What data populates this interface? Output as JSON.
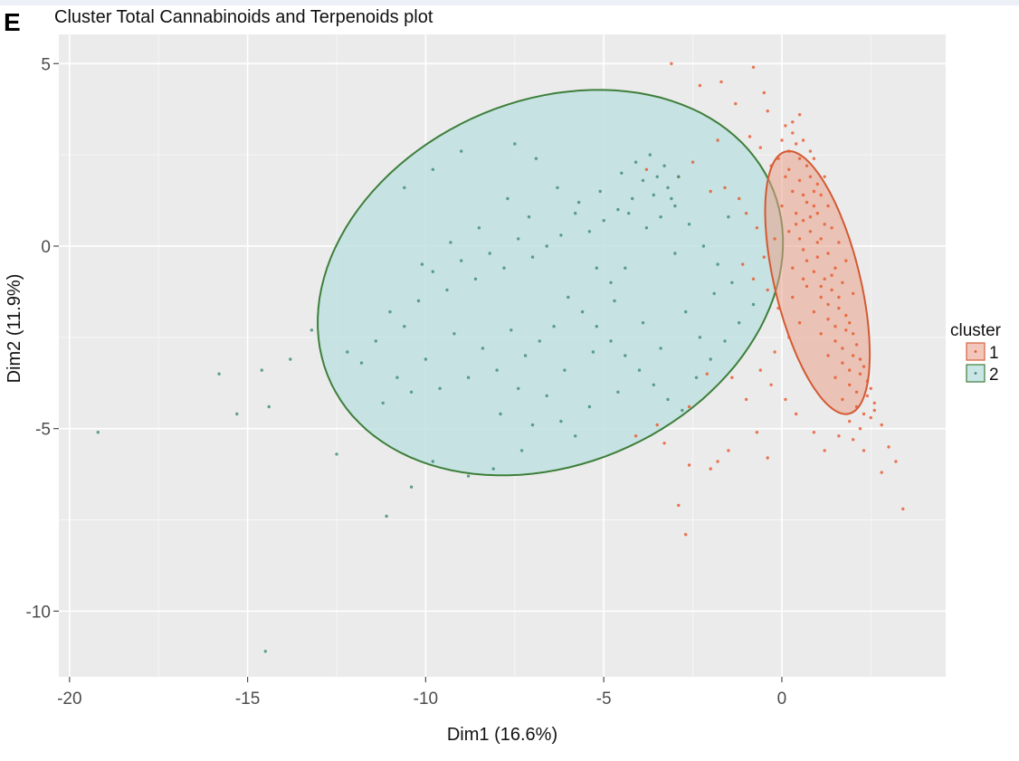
{
  "panel_label": "E",
  "chart_data": {
    "type": "scatter",
    "title": "Cluster Total Cannabinoids and Terpenoids plot",
    "xlabel": "Dim1 (16.6%)",
    "ylabel": "Dim2 (11.9%)",
    "xlim": [
      -20.3,
      4.6
    ],
    "ylim": [
      -11.8,
      5.8
    ],
    "x_ticks": [
      -20,
      -15,
      -10,
      -5,
      0
    ],
    "y_ticks": [
      5,
      0,
      -5,
      -10
    ],
    "x_tick_labels": [
      "-20",
      "-15",
      "-10",
      "-5",
      "0"
    ],
    "y_tick_labels": [
      "5",
      "0",
      "-5",
      "-10"
    ],
    "grid": true,
    "legend": {
      "title": "cluster",
      "position": "right",
      "entries": [
        {
          "label": "1",
          "color": "#e8572a",
          "fill": "#f2c6ba",
          "border": "#d96040"
        },
        {
          "label": "2",
          "color": "#3c8c73",
          "fill": "#c9e5e6",
          "border": "#3d7f3a"
        }
      ]
    },
    "series": [
      {
        "name": "1",
        "color": "#e8572a",
        "ellipse": {
          "cx": 1.0,
          "cy": -1.0,
          "rx": 3.7,
          "ry": 1.2,
          "angle_deg": -76,
          "fill": "#e9a08a",
          "stroke": "#d25a32"
        },
        "points": [
          [
            -3.1,
            5.0
          ],
          [
            -1.7,
            4.5
          ],
          [
            -0.8,
            4.9
          ],
          [
            -0.5,
            4.2
          ],
          [
            -2.3,
            4.4
          ],
          [
            -1.3,
            3.9
          ],
          [
            -0.4,
            3.7
          ],
          [
            0.5,
            3.6
          ],
          [
            0.1,
            3.3
          ],
          [
            -0.9,
            3.0
          ],
          [
            -1.8,
            2.9
          ],
          [
            -2.5,
            2.3
          ],
          [
            -3.8,
            2.1
          ],
          [
            -2.9,
            1.9
          ],
          [
            -1.6,
            1.6
          ],
          [
            -1.2,
            1.3
          ],
          [
            -2.0,
            1.5
          ],
          [
            -0.6,
            2.7
          ],
          [
            -0.1,
            2.4
          ],
          [
            0.3,
            3.1
          ],
          [
            0.6,
            2.9
          ],
          [
            0.8,
            2.6
          ],
          [
            0.2,
            2.1
          ],
          [
            0.5,
            1.8
          ],
          [
            0.9,
            1.5
          ],
          [
            1.2,
            1.9
          ],
          [
            0.7,
            1.2
          ],
          [
            1.0,
            0.9
          ],
          [
            1.3,
            1.1
          ],
          [
            0.4,
            0.6
          ],
          [
            0.8,
            0.4
          ],
          [
            1.1,
            0.2
          ],
          [
            1.4,
            0.5
          ],
          [
            0.6,
            -0.1
          ],
          [
            1.0,
            -0.3
          ],
          [
            1.3,
            -0.2
          ],
          [
            1.6,
            0.1
          ],
          [
            0.9,
            -0.7
          ],
          [
            1.2,
            -0.9
          ],
          [
            1.5,
            -0.6
          ],
          [
            1.8,
            -0.4
          ],
          [
            0.7,
            -1.1
          ],
          [
            1.1,
            -1.4
          ],
          [
            1.4,
            -1.2
          ],
          [
            1.7,
            -1.0
          ],
          [
            2.0,
            -1.3
          ],
          [
            0.9,
            -1.8
          ],
          [
            1.3,
            -2.0
          ],
          [
            1.6,
            -1.7
          ],
          [
            1.9,
            -2.1
          ],
          [
            1.1,
            -2.4
          ],
          [
            1.5,
            -2.6
          ],
          [
            1.8,
            -2.3
          ],
          [
            2.1,
            -2.7
          ],
          [
            1.3,
            -3.0
          ],
          [
            1.7,
            -3.2
          ],
          [
            2.0,
            -3.0
          ],
          [
            2.3,
            -3.3
          ],
          [
            1.5,
            -3.6
          ],
          [
            1.9,
            -3.8
          ],
          [
            2.2,
            -3.5
          ],
          [
            2.5,
            -3.9
          ],
          [
            1.7,
            -4.2
          ],
          [
            2.1,
            -4.4
          ],
          [
            2.4,
            -4.1
          ],
          [
            2.6,
            -4.5
          ],
          [
            1.9,
            -4.8
          ],
          [
            2.2,
            -5.0
          ],
          [
            2.5,
            -4.7
          ],
          [
            2.0,
            -5.3
          ],
          [
            2.3,
            -5.6
          ],
          [
            1.6,
            -5.2
          ],
          [
            1.2,
            -5.6
          ],
          [
            0.9,
            -5.1
          ],
          [
            0.4,
            -4.6
          ],
          [
            0.1,
            -4.2
          ],
          [
            -0.3,
            -3.8
          ],
          [
            -0.6,
            -3.4
          ],
          [
            -0.2,
            -2.9
          ],
          [
            0.2,
            -2.5
          ],
          [
            0.5,
            -2.1
          ],
          [
            -0.1,
            -1.7
          ],
          [
            0.3,
            -1.4
          ],
          [
            -0.4,
            -1.2
          ],
          [
            -0.8,
            -0.9
          ],
          [
            -1.1,
            -0.5
          ],
          [
            -0.5,
            -0.3
          ],
          [
            -0.2,
            0.2
          ],
          [
            -0.7,
            0.5
          ],
          [
            -1.0,
            0.9
          ],
          [
            3.2,
            -5.9
          ],
          [
            3.4,
            -7.2
          ],
          [
            2.8,
            -6.2
          ],
          [
            3.0,
            -5.5
          ],
          [
            -0.7,
            -5.1
          ],
          [
            -1.5,
            -5.6
          ],
          [
            -2.0,
            -6.1
          ],
          [
            -2.6,
            -6.0
          ],
          [
            -1.8,
            -5.9
          ],
          [
            -0.4,
            -5.8
          ],
          [
            -2.7,
            -7.9
          ],
          [
            -2.9,
            -7.1
          ],
          [
            -1.0,
            -4.2
          ],
          [
            -1.4,
            -3.6
          ],
          [
            -2.1,
            -3.5
          ],
          [
            -2.6,
            -4.4
          ],
          [
            -3.5,
            -4.9
          ],
          [
            -4.1,
            -5.2
          ],
          [
            -3.3,
            -5.4
          ],
          [
            0.7,
            2.2
          ],
          [
            0.4,
            2.8
          ],
          [
            0.9,
            2.4
          ],
          [
            1.0,
            1.7
          ],
          [
            0.6,
            1.4
          ],
          [
            0.8,
            0.8
          ],
          [
            1.2,
            0.6
          ],
          [
            0.5,
            0.2
          ],
          [
            1.0,
            0.1
          ],
          [
            0.7,
            -0.4
          ],
          [
            1.4,
            -0.8
          ],
          [
            1.1,
            -1.1
          ],
          [
            1.6,
            -1.4
          ],
          [
            1.3,
            -1.6
          ],
          [
            1.8,
            -1.9
          ],
          [
            1.5,
            -2.2
          ],
          [
            2.0,
            -2.4
          ],
          [
            1.7,
            -2.8
          ],
          [
            2.2,
            -3.1
          ],
          [
            1.9,
            -3.4
          ],
          [
            2.4,
            -3.7
          ],
          [
            2.1,
            -4.0
          ],
          [
            2.6,
            -4.3
          ],
          [
            2.3,
            -4.6
          ],
          [
            2.8,
            -4.9
          ],
          [
            0.3,
            3.4
          ],
          [
            0.0,
            2.9
          ],
          [
            0.2,
            2.6
          ],
          [
            -0.3,
            2.2
          ],
          [
            0.1,
            1.9
          ],
          [
            0.3,
            1.5
          ],
          [
            0.0,
            1.1
          ],
          [
            0.4,
            0.9
          ],
          [
            0.2,
            0.4
          ],
          [
            0.6,
            0.7
          ],
          [
            0.9,
            1.1
          ],
          [
            1.1,
            1.4
          ],
          [
            0.8,
            1.9
          ],
          [
            0.5,
            2.4
          ],
          [
            0.3,
            -0.6
          ],
          [
            0.6,
            -0.9
          ]
        ]
      },
      {
        "name": "2",
        "color": "#3c8c73",
        "ellipse": {
          "cx": -6.5,
          "cy": -1.0,
          "rx": 6.75,
          "ry": 5.0,
          "angle_deg": 22,
          "fill": "#bfe0e1",
          "stroke": "#3d7f3a"
        },
        "points": [
          [
            -3.3,
            2.2
          ],
          [
            -3.5,
            1.9
          ],
          [
            -3.2,
            1.6
          ],
          [
            -3.6,
            1.4
          ],
          [
            -3.0,
            1.1
          ],
          [
            -3.4,
            0.8
          ],
          [
            -3.8,
            0.5
          ],
          [
            -4.2,
            1.3
          ],
          [
            -4.6,
            1.0
          ],
          [
            -5.0,
            0.7
          ],
          [
            -5.4,
            0.4
          ],
          [
            -5.8,
            0.9
          ],
          [
            -6.2,
            0.3
          ],
          [
            -6.6,
            0.0
          ],
          [
            -7.0,
            -0.3
          ],
          [
            -7.4,
            0.2
          ],
          [
            -7.8,
            -0.6
          ],
          [
            -8.2,
            -0.2
          ],
          [
            -8.6,
            -0.9
          ],
          [
            -9.0,
            -0.4
          ],
          [
            -9.4,
            -1.2
          ],
          [
            -9.8,
            -0.7
          ],
          [
            -10.2,
            -1.5
          ],
          [
            -10.6,
            -2.2
          ],
          [
            -11.0,
            -1.8
          ],
          [
            -11.4,
            -2.6
          ],
          [
            -11.8,
            -3.2
          ],
          [
            -12.2,
            -2.9
          ],
          [
            -6.0,
            -1.4
          ],
          [
            -5.6,
            -1.8
          ],
          [
            -5.2,
            -2.2
          ],
          [
            -4.8,
            -2.6
          ],
          [
            -4.4,
            -3.0
          ],
          [
            -4.0,
            -3.4
          ],
          [
            -3.6,
            -3.8
          ],
          [
            -3.2,
            -4.2
          ],
          [
            -2.8,
            -4.5
          ],
          [
            -2.4,
            -3.6
          ],
          [
            -2.0,
            -3.1
          ],
          [
            -1.6,
            -2.6
          ],
          [
            -1.2,
            -2.1
          ],
          [
            -0.8,
            -1.6
          ],
          [
            -1.4,
            -1.0
          ],
          [
            -1.8,
            -0.5
          ],
          [
            -2.2,
            0.0
          ],
          [
            -2.6,
            0.6
          ],
          [
            -3.0,
            -0.2
          ],
          [
            -4.4,
            -0.6
          ],
          [
            -4.8,
            -1.0
          ],
          [
            -5.2,
            -0.6
          ],
          [
            -6.4,
            -2.2
          ],
          [
            -6.8,
            -2.6
          ],
          [
            -7.2,
            -3.0
          ],
          [
            -7.6,
            -2.3
          ],
          [
            -8.0,
            -3.4
          ],
          [
            -8.4,
            -2.8
          ],
          [
            -8.8,
            -3.6
          ],
          [
            -9.2,
            -2.4
          ],
          [
            -9.6,
            -3.9
          ],
          [
            -10.0,
            -3.1
          ],
          [
            -10.4,
            -4.0
          ],
          [
            -10.8,
            -3.6
          ],
          [
            -11.2,
            -4.3
          ],
          [
            -6.2,
            -4.8
          ],
          [
            -5.8,
            -5.2
          ],
          [
            -5.4,
            -4.4
          ],
          [
            -6.6,
            -4.1
          ],
          [
            -7.0,
            -4.9
          ],
          [
            -7.4,
            -3.9
          ],
          [
            -7.9,
            -4.6
          ],
          [
            -4.1,
            2.3
          ],
          [
            -4.5,
            2.0
          ],
          [
            -3.7,
            2.5
          ],
          [
            -2.9,
            1.9
          ],
          [
            -3.1,
            1.3
          ],
          [
            -3.9,
            1.8
          ],
          [
            -4.3,
            0.9
          ],
          [
            -5.1,
            1.5
          ],
          [
            -5.7,
            1.2
          ],
          [
            -6.3,
            1.6
          ],
          [
            -7.1,
            0.8
          ],
          [
            -7.7,
            1.3
          ],
          [
            -8.5,
            0.5
          ],
          [
            -9.3,
            0.1
          ],
          [
            -10.1,
            -0.5
          ],
          [
            -6.9,
            2.4
          ],
          [
            -7.5,
            2.8
          ],
          [
            -9.0,
            2.6
          ],
          [
            -9.8,
            2.1
          ],
          [
            -10.6,
            1.6
          ],
          [
            -4.7,
            -1.5
          ],
          [
            -5.3,
            -2.9
          ],
          [
            -6.1,
            -3.4
          ],
          [
            -4.6,
            -4.0
          ],
          [
            -3.9,
            -2.1
          ],
          [
            -3.4,
            -2.8
          ],
          [
            -2.7,
            -1.8
          ],
          [
            -2.3,
            -2.5
          ],
          [
            -1.9,
            -1.3
          ],
          [
            -1.5,
            0.8
          ],
          [
            -13.2,
            -2.3
          ],
          [
            -13.8,
            -3.1
          ],
          [
            -14.6,
            -3.4
          ],
          [
            -15.8,
            -3.5
          ],
          [
            -15.3,
            -4.6
          ],
          [
            -14.4,
            -4.4
          ],
          [
            -19.2,
            -5.1
          ],
          [
            -14.5,
            -11.1
          ],
          [
            -11.1,
            -7.4
          ],
          [
            -10.4,
            -6.6
          ],
          [
            -12.5,
            -5.7
          ],
          [
            -9.8,
            -5.9
          ],
          [
            -8.8,
            -6.3
          ],
          [
            -8.1,
            -6.1
          ],
          [
            -7.3,
            -5.6
          ]
        ]
      }
    ]
  }
}
